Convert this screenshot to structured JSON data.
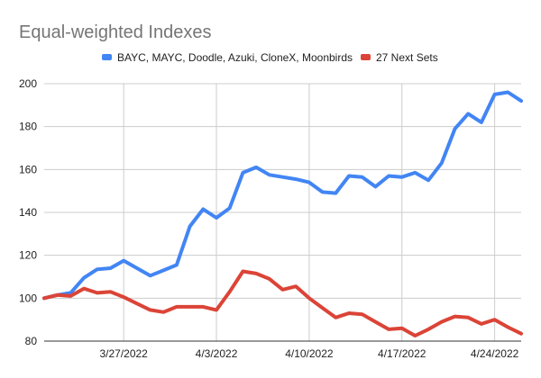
{
  "chart_data": {
    "type": "line",
    "title": "Equal-weighted Indexes",
    "xlabel": "",
    "ylabel": "",
    "ylim": [
      80,
      200
    ],
    "yticks": [
      80,
      100,
      120,
      140,
      160,
      180,
      200
    ],
    "x_tick_labels": [
      "3/27/2022",
      "4/3/2022",
      "4/10/2022",
      "4/17/2022",
      "4/24/2022"
    ],
    "grid": true,
    "legend_position": "top",
    "x": [
      "3/21/2022",
      "3/22/2022",
      "3/23/2022",
      "3/24/2022",
      "3/25/2022",
      "3/26/2022",
      "3/27/2022",
      "3/28/2022",
      "3/29/2022",
      "3/30/2022",
      "3/31/2022",
      "4/1/2022",
      "4/2/2022",
      "4/3/2022",
      "4/4/2022",
      "4/5/2022",
      "4/6/2022",
      "4/7/2022",
      "4/8/2022",
      "4/9/2022",
      "4/10/2022",
      "4/11/2022",
      "4/12/2022",
      "4/13/2022",
      "4/14/2022",
      "4/15/2022",
      "4/16/2022",
      "4/17/2022",
      "4/18/2022",
      "4/19/2022",
      "4/20/2022",
      "4/21/2022",
      "4/22/2022",
      "4/23/2022",
      "4/24/2022",
      "4/25/2022",
      "4/26/2022"
    ],
    "series": [
      {
        "name": "BAYC, MAYC, Doodle, Azuki, CloneX, Moonbirds",
        "color": "#4285f4",
        "values": [
          100,
          101.5,
          102.5,
          109.5,
          113.5,
          114,
          117.5,
          114,
          110.5,
          113,
          115.5,
          133.5,
          141.5,
          137.5,
          142,
          158.5,
          161,
          157.5,
          156.5,
          155.5,
          154,
          149.5,
          149,
          157,
          156.5,
          152,
          157,
          156.5,
          158.5,
          155,
          163,
          179,
          186,
          182,
          195,
          196,
          192
        ]
      },
      {
        "name": "27 Next Sets",
        "color": "#db4437",
        "values": [
          100,
          101.5,
          101,
          104.5,
          102.5,
          103,
          100.5,
          97.5,
          94.5,
          93.5,
          96,
          96,
          96,
          94.5,
          103,
          112.5,
          111.5,
          109,
          104,
          105.5,
          100,
          95.5,
          91,
          93,
          92.5,
          89,
          85.5,
          86,
          82.5,
          85.5,
          89,
          91.5,
          91,
          88,
          90,
          86.5,
          83.5
        ]
      }
    ]
  }
}
